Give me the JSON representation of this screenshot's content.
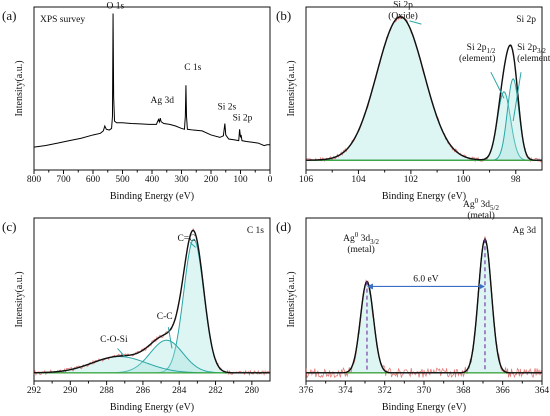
{
  "figure_type": "multi-panel XPS chart",
  "chart_data": [
    {
      "id": "a",
      "type": "line",
      "panel_label": "(a)",
      "title": "XPS survey",
      "xlabel": "Binding Energy (eV)",
      "ylabel": "Intensity(a.u.)",
      "xlim": [
        800,
        0
      ],
      "ylim": [
        0,
        1
      ],
      "x_reversed": true,
      "x_ticks": [
        800,
        700,
        600,
        500,
        400,
        300,
        200,
        100,
        0
      ],
      "y_ticks_shown": false,
      "series": [
        {
          "color": "#000000",
          "points": [
            [
              800,
              0.14
            ],
            [
              760,
              0.15
            ],
            [
              720,
              0.165
            ],
            [
              680,
              0.18
            ],
            [
              640,
              0.195
            ],
            [
              600,
              0.215
            ],
            [
              575,
              0.225
            ],
            [
              565,
              0.24
            ],
            [
              560,
              0.27
            ],
            [
              555,
              0.25
            ],
            [
              545,
              0.245
            ],
            [
              537,
              0.255
            ],
            [
              534,
              0.33
            ],
            [
              532,
              0.96
            ],
            [
              530,
              0.45
            ],
            [
              527,
              0.3
            ],
            [
              520,
              0.29
            ],
            [
              500,
              0.29
            ],
            [
              470,
              0.285
            ],
            [
              440,
              0.283
            ],
            [
              410,
              0.28
            ],
            [
              385,
              0.28
            ],
            [
              378,
              0.31
            ],
            [
              375,
              0.295
            ],
            [
              372,
              0.318
            ],
            [
              369,
              0.296
            ],
            [
              360,
              0.285
            ],
            [
              340,
              0.28
            ],
            [
              320,
              0.27
            ],
            [
              300,
              0.255
            ],
            [
              290,
              0.25
            ],
            [
              287,
              0.33
            ],
            [
              285,
              0.52
            ],
            [
              283,
              0.33
            ],
            [
              280,
              0.25
            ],
            [
              260,
              0.245
            ],
            [
              230,
              0.24
            ],
            [
              200,
              0.215
            ],
            [
              170,
              0.2
            ],
            [
              158,
              0.21
            ],
            [
              153,
              0.285
            ],
            [
              150,
              0.215
            ],
            [
              140,
              0.19
            ],
            [
              120,
              0.185
            ],
            [
              106,
              0.18
            ],
            [
              103,
              0.25
            ],
            [
              100,
              0.2
            ],
            [
              98,
              0.215
            ],
            [
              95,
              0.18
            ],
            [
              80,
              0.175
            ],
            [
              60,
              0.17
            ],
            [
              40,
              0.165
            ],
            [
              20,
              0.15
            ],
            [
              10,
              0.155
            ],
            [
              0,
              0.155
            ]
          ]
        }
      ],
      "annotations": [
        {
          "text": "O 1s",
          "x": 531,
          "y": 0.98,
          "subscript": ""
        },
        {
          "text": "C 1s",
          "x": 284,
          "y": 0.6,
          "subscript": ""
        },
        {
          "text": "Ag 3d",
          "x": 372,
          "y": 0.4,
          "subscript": ""
        },
        {
          "text": "Si 2s",
          "x": 153,
          "y": 0.36,
          "subscript": ""
        },
        {
          "text": "Si 2p",
          "x": 100,
          "y": 0.29,
          "subscript": ""
        }
      ]
    },
    {
      "id": "b",
      "type": "line",
      "panel_label": "(b)",
      "title": "Si 2p",
      "xlabel": "Binding Energy (eV)",
      "ylabel": "Intensity(a.u.)",
      "xlim": [
        106,
        97
      ],
      "ylim": [
        0,
        1
      ],
      "x_reversed": true,
      "x_ticks": [
        106,
        104,
        102,
        100,
        98
      ],
      "y_ticks_shown": false,
      "baseline": 0.06,
      "peaks": [
        {
          "name": "Si 2p (Oxide)",
          "center": 102.4,
          "height": 0.88,
          "sigma": 0.9,
          "color": "#111111"
        },
        {
          "name": "Si 2p1/2 (element)",
          "center": 98.45,
          "height": 0.42,
          "sigma": 0.25,
          "color": "#2aa6a6"
        },
        {
          "name": "Si 2p3/2 (element)",
          "center": 98.1,
          "height": 0.5,
          "sigma": 0.22,
          "color": "#2aa6a6"
        }
      ],
      "annotations": [
        {
          "text": "Si 2p",
          "line2": "(Oxide)",
          "x": 102.3,
          "y": 0.93,
          "subscript": ""
        },
        {
          "text": "Si 2p",
          "line2": "(element)",
          "x": 98.7,
          "y": 0.67,
          "subscript": "1/2"
        },
        {
          "text": "Si 2p",
          "line2": "(element)",
          "x": 98.1,
          "y": 0.67,
          "subscript": "3/2"
        }
      ]
    },
    {
      "id": "c",
      "type": "line",
      "panel_label": "(c)",
      "title": "C 1s",
      "xlabel": "Binding Energy (eV)",
      "ylabel": "Intensity(a.u.)",
      "xlim": [
        292,
        279
      ],
      "ylim": [
        0,
        1
      ],
      "x_reversed": true,
      "x_ticks": [
        292,
        290,
        288,
        286,
        284,
        282,
        280
      ],
      "y_ticks_shown": false,
      "baseline": 0.05,
      "peaks": [
        {
          "name": "C=C",
          "center": 283.2,
          "height": 0.82,
          "sigma": 0.55,
          "color": "#2aa6a6"
        },
        {
          "name": "C-C",
          "center": 284.7,
          "height": 0.2,
          "sigma": 0.9,
          "color": "#2aa6a6"
        },
        {
          "name": "C-O-Si",
          "center": 287.3,
          "height": 0.1,
          "sigma": 1.5,
          "color": "#2aa6a6"
        }
      ],
      "annotations": [
        {
          "text": "C=C",
          "x": 283.6,
          "y": 0.86,
          "subscript": ""
        },
        {
          "text": "C-C",
          "x": 284.8,
          "y": 0.38,
          "subscript": ""
        },
        {
          "text": "C-O-Si",
          "x": 287.6,
          "y": 0.24,
          "subscript": ""
        }
      ]
    },
    {
      "id": "d",
      "type": "line",
      "panel_label": "(d)",
      "title": "Ag 3d",
      "xlabel": "Binding Energy (eV)",
      "ylabel": "Intensity(a.u.)",
      "xlim": [
        376,
        364
      ],
      "ylim": [
        0,
        1
      ],
      "x_reversed": true,
      "x_ticks": [
        376,
        374,
        372,
        370,
        368,
        366,
        364
      ],
      "y_ticks_shown": false,
      "baseline": 0.05,
      "peaks": [
        {
          "name": "Ag0 3d3/2 (metal)",
          "center": 372.9,
          "height": 0.56,
          "sigma": 0.33,
          "color": "#111111"
        },
        {
          "name": "Ag0 3d5/2 (metal)",
          "center": 366.9,
          "height": 0.82,
          "sigma": 0.33,
          "color": "#111111"
        }
      ],
      "splitting": {
        "label": "6.0 eV",
        "x1": 372.9,
        "x2": 366.9,
        "y": 0.58,
        "color": "#3b6fc4"
      },
      "annotations": [
        {
          "text": "Ag",
          "sup": "0",
          "rest": " 3d",
          "subscript": "3/2",
          "line2": "(metal)",
          "x": 373.2,
          "y": 0.79
        },
        {
          "text": "Ag",
          "sup": "0",
          "rest": " 3d",
          "subscript": "5/2",
          "line2": "(metal)",
          "x": 367.1,
          "y": 1.0
        }
      ]
    }
  ]
}
